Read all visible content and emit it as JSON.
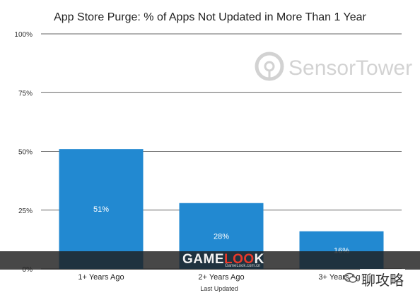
{
  "chart_data": {
    "type": "bar",
    "title": "App Store Purge: % of Apps Not Updated in More Than 1 Year",
    "xlabel": "Last Updated",
    "ylabel": "",
    "categories": [
      "1+ Years Ago",
      "2+ Years Ago",
      "3+ Years Ago"
    ],
    "values": [
      51,
      28,
      16
    ],
    "value_labels": [
      "51%",
      "28%",
      "16%"
    ],
    "ylim": [
      0,
      100
    ],
    "yticks": [
      "0%",
      "25%",
      "50%",
      "75%",
      "100%"
    ],
    "ytick_values": [
      0,
      25,
      50,
      75,
      100
    ],
    "grid": true,
    "bar_color": "#2289d1",
    "label_color": "#ffffff"
  },
  "watermarks": {
    "sensortower": "SensorTower",
    "gamelook_prefix": "GAME",
    "gamelook_oo": "LOO",
    "gamelook_suffix": "K",
    "gamelook_url": "GameLook.com.cn",
    "wechat": "聊攻略"
  }
}
